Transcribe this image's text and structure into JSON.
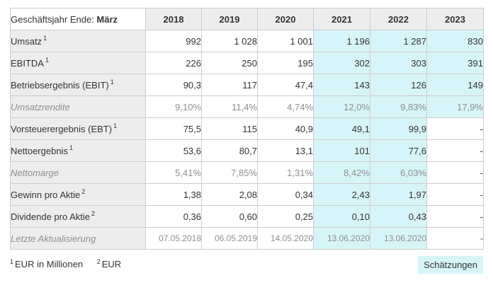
{
  "table": {
    "header": {
      "label_prefix": "Geschäftsjahr Ende: ",
      "label_bold": "März",
      "years": [
        "2018",
        "2019",
        "2020",
        "2021",
        "2022",
        "2023"
      ]
    },
    "estimate_from_index": 3,
    "estimate_color": "#d7f5f8",
    "rows": [
      {
        "label": "Umsatz",
        "sup": "1",
        "muted": false,
        "small": false,
        "values": [
          "992",
          "1 028",
          "1 001",
          "1 196",
          "1 287",
          "830"
        ]
      },
      {
        "label": "EBITDA",
        "sup": "1",
        "muted": false,
        "small": false,
        "values": [
          "226",
          "250",
          "195",
          "302",
          "303",
          "391"
        ]
      },
      {
        "label": "Betriebsergebnis (EBIT)",
        "sup": "1",
        "muted": false,
        "small": false,
        "values": [
          "90,3",
          "117",
          "47,4",
          "143",
          "126",
          "149"
        ]
      },
      {
        "label": "Umsatzrendite",
        "sup": "",
        "muted": true,
        "small": false,
        "values": [
          "9,10%",
          "11,4%",
          "4,74%",
          "12,0%",
          "9,83%",
          "17,9%"
        ]
      },
      {
        "label": "Vorsteuerergebnis (EBT)",
        "sup": "1",
        "muted": false,
        "small": false,
        "values": [
          "75,5",
          "115",
          "40,9",
          "49,1",
          "99,9",
          "-"
        ]
      },
      {
        "label": "Nettoergebnis",
        "sup": "1",
        "muted": false,
        "small": false,
        "values": [
          "53,6",
          "80,7",
          "13,1",
          "101",
          "77,6",
          "-"
        ]
      },
      {
        "label": "Nettomarge",
        "sup": "",
        "muted": true,
        "small": false,
        "values": [
          "5,41%",
          "7,85%",
          "1,31%",
          "8,42%",
          "6,03%",
          "-"
        ]
      },
      {
        "label": "Gewinn pro Aktie",
        "sup": "2",
        "muted": false,
        "small": false,
        "values": [
          "1,38",
          "2,08",
          "0,34",
          "2,43",
          "1,97",
          "-"
        ]
      },
      {
        "label": "Dividende pro Aktie",
        "sup": "2",
        "muted": false,
        "small": false,
        "values": [
          "0,36",
          "0,60",
          "0,25",
          "0,10",
          "0,43",
          "-"
        ]
      },
      {
        "label": "Letzte Aktualisierung",
        "sup": "",
        "muted": true,
        "small": true,
        "values": [
          "07.05.2018",
          "06.05.2019",
          "14.05.2020",
          "13.06.2020",
          "13.06.2020",
          "-"
        ]
      }
    ]
  },
  "footnotes": [
    {
      "sup": "1",
      "text": "EUR in Millionen"
    },
    {
      "sup": "2",
      "text": "EUR"
    }
  ],
  "legend": {
    "estimates_label": "Schätzungen"
  }
}
